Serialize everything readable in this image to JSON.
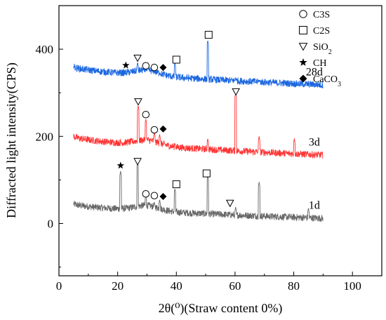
{
  "chart_data": {
    "type": "line",
    "xlabel": "2θ(⁰)(Straw content 0%)",
    "ylabel": "Diffracted light intensity(CPS)",
    "xlim": [
      0,
      110
    ],
    "ylim": [
      -120,
      500
    ],
    "x_ticks": [
      0,
      20,
      40,
      60,
      80,
      100
    ],
    "y_ticks": [
      0,
      200,
      400
    ],
    "x_range": [
      5,
      90
    ],
    "legend": {
      "position": "top-right",
      "entries": [
        {
          "symbol": "circle",
          "label": "C3S"
        },
        {
          "symbol": "square",
          "label": "C2S"
        },
        {
          "symbol": "triangle-down",
          "label": "SiO2"
        },
        {
          "symbol": "star",
          "label": "CH"
        },
        {
          "symbol": "diamond",
          "label": "CaCO3"
        }
      ]
    },
    "series": [
      {
        "name": "1d",
        "color": "#666666",
        "baseline_start": 45,
        "baseline_end": 12,
        "peaks": [
          [
            21,
            120
          ],
          [
            26.8,
            140
          ],
          [
            29.6,
            65
          ],
          [
            32.5,
            50
          ],
          [
            34.3,
            55
          ],
          [
            39.5,
            80
          ],
          [
            50.7,
            110
          ],
          [
            60.2,
            38
          ],
          [
            68.2,
            95
          ],
          [
            85,
            35
          ]
        ],
        "label_x": 87
      },
      {
        "name": "3d",
        "color": "#ff3333",
        "baseline_start": 200,
        "baseline_end": 157,
        "peaks": [
          [
            27,
            270
          ],
          [
            29.6,
            240
          ],
          [
            32.5,
            210
          ],
          [
            34.3,
            205
          ],
          [
            39.5,
            185
          ],
          [
            50.7,
            195
          ],
          [
            60.2,
            300
          ],
          [
            68.2,
            200
          ],
          [
            80.2,
            195
          ]
        ],
        "label_x": 87
      },
      {
        "name": "28d",
        "color": "#1a66e0",
        "baseline_start": 360,
        "baseline_end": 318,
        "peaks": [
          [
            26.8,
            370
          ],
          [
            29.6,
            355
          ],
          [
            32.5,
            350
          ],
          [
            34.3,
            345
          ],
          [
            39.5,
            370
          ],
          [
            50.7,
            420
          ],
          [
            60.2,
            335
          ],
          [
            68.2,
            330
          ]
        ],
        "label_x": 87
      }
    ],
    "annotations": [
      {
        "symbol": "star",
        "x": 22.8,
        "y": 363
      },
      {
        "symbol": "triangle-down",
        "x": 26.8,
        "y": 380
      },
      {
        "symbol": "circle",
        "x": 29.6,
        "y": 362
      },
      {
        "symbol": "circle",
        "x": 32.5,
        "y": 358
      },
      {
        "symbol": "diamond",
        "x": 35.5,
        "y": 358
      },
      {
        "symbol": "square",
        "x": 40,
        "y": 376
      },
      {
        "symbol": "square",
        "x": 51,
        "y": 433
      },
      {
        "symbol": "triangle-down",
        "x": 27,
        "y": 280
      },
      {
        "symbol": "circle",
        "x": 29.6,
        "y": 250
      },
      {
        "symbol": "circle",
        "x": 32.5,
        "y": 215
      },
      {
        "symbol": "diamond",
        "x": 35.5,
        "y": 217
      },
      {
        "symbol": "triangle-down",
        "x": 60.3,
        "y": 303
      },
      {
        "symbol": "star",
        "x": 21,
        "y": 133
      },
      {
        "symbol": "triangle-down",
        "x": 26.8,
        "y": 143
      },
      {
        "symbol": "circle",
        "x": 29.6,
        "y": 68
      },
      {
        "symbol": "circle",
        "x": 32.5,
        "y": 64
      },
      {
        "symbol": "diamond",
        "x": 35.5,
        "y": 62
      },
      {
        "symbol": "square",
        "x": 40,
        "y": 90
      },
      {
        "symbol": "square",
        "x": 50.3,
        "y": 115
      },
      {
        "symbol": "triangle-down",
        "x": 58.3,
        "y": 47
      }
    ]
  }
}
